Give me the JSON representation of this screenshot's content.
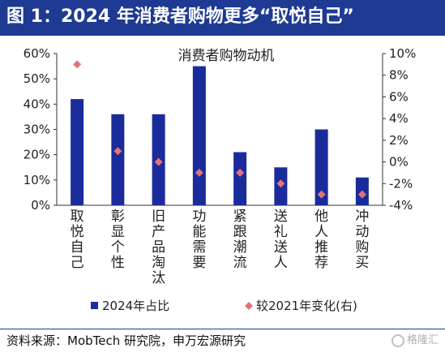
{
  "header": {
    "title": "图 1：2024 年消费者购物更多“取悦自己”"
  },
  "footer": {
    "source": "资料来源：MobTech 研究院，申万宏源研究",
    "watermark": "格隆汇"
  },
  "colors": {
    "bar": "#1a2b9c",
    "marker": "#e0737a",
    "header": "#1f3a93"
  },
  "chart_data": {
    "type": "bar",
    "title": "消费者购物动机",
    "categories": [
      "取悦自己",
      "彰显个性",
      "旧产品淘汰",
      "功能需要",
      "紧跟潮流",
      "送礼送人",
      "他人推荐",
      "冲动购买"
    ],
    "series": [
      {
        "name": "2024年占比",
        "type": "bar",
        "axis": "left",
        "values": [
          42,
          36,
          36,
          55,
          21,
          15,
          30,
          11
        ]
      },
      {
        "name": "较2021年变化(右)",
        "type": "scatter",
        "axis": "right",
        "values": [
          9,
          1,
          0,
          -1,
          -1,
          -2,
          -3,
          -3
        ]
      }
    ],
    "y_left": {
      "range": [
        0,
        60
      ],
      "ticks": [
        "0%",
        "10%",
        "20%",
        "30%",
        "40%",
        "50%",
        "60%"
      ]
    },
    "y_right": {
      "range": [
        -4,
        10
      ],
      "ticks": [
        "-4%",
        "-2%",
        "0%",
        "2%",
        "4%",
        "6%",
        "8%",
        "10%"
      ]
    },
    "legend_position": "bottom",
    "grid": false
  }
}
